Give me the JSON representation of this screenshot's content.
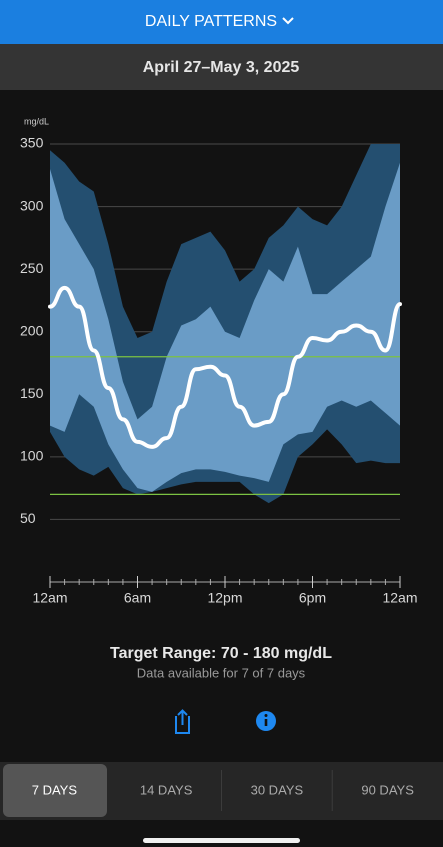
{
  "header": {
    "title": "DAILY PATTERNS"
  },
  "date_range": "April 27–May 3, 2025",
  "chart_data": {
    "type": "agp",
    "y_label": "mg/dL",
    "x": [
      0,
      1,
      2,
      3,
      4,
      5,
      6,
      7,
      8,
      9,
      10,
      11,
      12,
      13,
      14,
      15,
      16,
      17,
      18,
      19,
      20,
      21,
      22,
      23,
      24
    ],
    "xlim": [
      0,
      24
    ],
    "xticks": [
      {
        "value": 0,
        "label": "12am"
      },
      {
        "value": 6,
        "label": "6am"
      },
      {
        "value": 12,
        "label": "12pm"
      },
      {
        "value": 18,
        "label": "6pm"
      },
      {
        "value": 24,
        "label": "12am"
      }
    ],
    "xminor": [
      0,
      1,
      2,
      3,
      4,
      5,
      6,
      7,
      8,
      9,
      10,
      11,
      12,
      13,
      14,
      15,
      16,
      17,
      18,
      19,
      20,
      21,
      22,
      23,
      24
    ],
    "ylim": [
      0,
      350
    ],
    "yticks": [
      50,
      100,
      150,
      200,
      250,
      300,
      350
    ],
    "grid": true,
    "target_lines": {
      "values": [
        70,
        180
      ],
      "color": "#7cc242"
    },
    "bands": [
      {
        "color": "#244f70",
        "upper": [
          345,
          335,
          320,
          312,
          270,
          220,
          195,
          200,
          240,
          270,
          275,
          280,
          265,
          240,
          250,
          275,
          285,
          300,
          290,
          285,
          300,
          325,
          350,
          350,
          350
        ],
        "lower": [
          120,
          100,
          90,
          85,
          92,
          75,
          70,
          72,
          75,
          78,
          80,
          80,
          80,
          80,
          70,
          63,
          70,
          100,
          110,
          122,
          110,
          95,
          97,
          95,
          95
        ]
      },
      {
        "color": "#6a9cc6",
        "upper": [
          330,
          290,
          270,
          250,
          210,
          160,
          130,
          140,
          180,
          205,
          210,
          220,
          200,
          195,
          225,
          250,
          240,
          268,
          230,
          230,
          240,
          250,
          260,
          300,
          335
        ],
        "lower": [
          125,
          120,
          150,
          140,
          110,
          90,
          75,
          72,
          80,
          87,
          90,
          90,
          88,
          85,
          83,
          80,
          110,
          118,
          120,
          140,
          145,
          140,
          145,
          135,
          125
        ]
      }
    ],
    "median": {
      "color": "#ffffff",
      "values": [
        220,
        235,
        220,
        185,
        155,
        130,
        112,
        108,
        115,
        140,
        170,
        172,
        165,
        140,
        125,
        128,
        150,
        180,
        195,
        193,
        200,
        205,
        200,
        185,
        222
      ]
    }
  },
  "target": {
    "title": "Target Range: 70 - 180 mg/dL",
    "subtitle": "Data available for 7 of 7 days"
  },
  "tabs": {
    "items": [
      "7 DAYS",
      "14 DAYS",
      "30 DAYS",
      "90 DAYS"
    ],
    "selected": 0
  }
}
